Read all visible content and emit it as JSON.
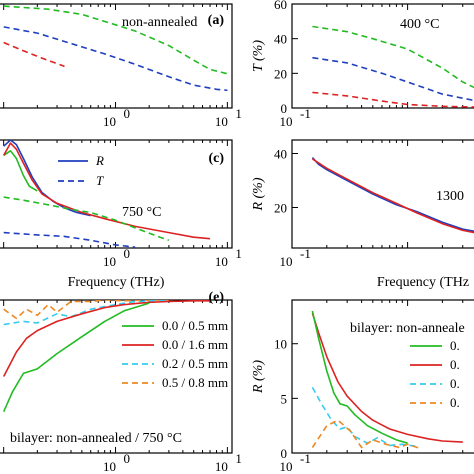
{
  "chart_data": [
    {
      "id": "a",
      "type": "line",
      "panel_label": "(a)",
      "annotation": "non-annealed",
      "xscale": "log",
      "xtick_labels": [
        "10",
        "10"
      ],
      "xtick_exponents": [
        "0",
        "1"
      ],
      "series": [
        {
          "color": "#22bb22",
          "dash": "6,4",
          "x": [
            0.1,
            0.25,
            0.5,
            1.0,
            1.5,
            3.0,
            5.0,
            7.0,
            10.0
          ],
          "y": [
            98,
            95,
            90,
            80,
            74,
            60,
            46,
            37,
            33
          ]
        },
        {
          "color": "#1f3fbf",
          "dash": "6,4",
          "x": [
            0.1,
            0.2,
            0.4,
            0.8,
            1.5,
            3.0,
            5.0,
            8.0,
            10.0
          ],
          "y": [
            78,
            72,
            62,
            52,
            42,
            30,
            22,
            18,
            17
          ]
        },
        {
          "color": "#dd2222",
          "dash": "6,4",
          "x": [
            0.1,
            0.15,
            0.22,
            0.35
          ],
          "y": [
            63,
            55,
            48,
            40
          ]
        }
      ]
    },
    {
      "id": "b",
      "type": "line",
      "annotation": "400 °C",
      "ylabel": "T (%)",
      "xscale": "log",
      "ylim": [
        0,
        60
      ],
      "yticks": [
        0,
        20,
        40,
        60
      ],
      "xtick_labels": [
        "10"
      ],
      "xtick_exponents": [
        "-1"
      ],
      "series": [
        {
          "color": "#22bb22",
          "dash": "6,4",
          "x": [
            0.15,
            0.3,
            0.5,
            1.0,
            2.0,
            3.0,
            4.0
          ],
          "y": [
            47,
            44,
            40,
            34,
            23,
            15,
            11
          ]
        },
        {
          "color": "#1f3fbf",
          "dash": "6,4",
          "x": [
            0.15,
            0.3,
            0.6,
            1.0,
            2.0,
            4.0
          ],
          "y": [
            29,
            26,
            20,
            15,
            8,
            4
          ]
        },
        {
          "color": "#dd2222",
          "dash": "6,4",
          "x": [
            0.15,
            0.3,
            0.6,
            1.0,
            2.0,
            4.0
          ],
          "y": [
            9,
            7,
            4,
            2,
            1,
            0.5
          ]
        }
      ]
    },
    {
      "id": "c",
      "type": "line",
      "panel_label": "(c)",
      "annotation": "750 °C",
      "xlabel": "Frequency (THz)",
      "xscale": "log",
      "xtick_labels": [
        "10",
        "10"
      ],
      "xtick_exponents": [
        "0",
        "1"
      ],
      "legend": [
        {
          "label": "R",
          "color": "#1f3fbf",
          "dash": ""
        },
        {
          "label": "T",
          "color": "#1f3fbf",
          "dash": "6,4"
        }
      ],
      "series": [
        {
          "color": "#1f3fbf",
          "dash": "",
          "x": [
            0.1,
            0.115,
            0.13,
            0.15,
            0.18,
            0.22,
            0.28,
            0.35,
            0.45,
            0.6
          ],
          "y": [
            66,
            70,
            67,
            58,
            46,
            36,
            30,
            26,
            23,
            21
          ]
        },
        {
          "color": "#22bb22",
          "dash": "",
          "x": [
            0.1,
            0.115,
            0.13,
            0.15,
            0.17,
            0.2
          ],
          "y": [
            60,
            63,
            58,
            47,
            40,
            37
          ]
        },
        {
          "color": "#dd2222",
          "dash": "",
          "x": [
            0.1,
            0.115,
            0.13,
            0.15,
            0.18,
            0.22,
            0.3,
            0.5,
            0.8,
            1.5,
            3.0,
            5.0,
            7.0
          ],
          "y": [
            60,
            68,
            64,
            55,
            44,
            35,
            29,
            23,
            19,
            14,
            10,
            7,
            6
          ]
        },
        {
          "color": "#22bb22",
          "dash": "6,4",
          "x": [
            0.1,
            0.15,
            0.25,
            0.4,
            0.6,
            1.0,
            1.5,
            2.5,
            3.0
          ],
          "y": [
            33,
            31,
            28,
            25,
            23,
            18,
            13,
            7,
            5
          ]
        },
        {
          "color": "#1f3fbf",
          "dash": "6,4",
          "x": [
            0.1,
            0.2,
            0.35,
            0.6,
            1.0,
            1.5
          ],
          "y": [
            10,
            8.5,
            7.5,
            5,
            2,
            0.5
          ]
        }
      ]
    },
    {
      "id": "d",
      "type": "line",
      "annotation": "1300",
      "xlabel": "Frequency (THz",
      "ylabel": "R (%)",
      "xscale": "log",
      "ylim": [
        5,
        45
      ],
      "yticks": [
        20,
        40
      ],
      "xtick_labels": [
        "10"
      ],
      "xtick_exponents": [
        "-1"
      ],
      "series": [
        {
          "color": "#1f3fbf",
          "dash": "",
          "x": [
            0.15,
            0.17,
            0.2,
            0.3,
            0.5,
            0.8,
            1.2,
            2.0,
            3.0,
            4.0
          ],
          "y": [
            38.5,
            36,
            34,
            30,
            25,
            21,
            18.5,
            14.5,
            12,
            11
          ]
        },
        {
          "color": "#dd2222",
          "dash": "",
          "x": [
            0.15,
            0.17,
            0.2,
            0.3,
            0.5,
            0.8,
            1.2,
            2.0,
            3.0,
            4.0
          ],
          "y": [
            38,
            36.5,
            34.5,
            30.5,
            25.5,
            21.5,
            18,
            14,
            11.5,
            10.5
          ]
        }
      ]
    },
    {
      "id": "e",
      "type": "line",
      "panel_label": "(e)",
      "annotation": "bilayer:  non-annealed / 750 °C",
      "xlabel": "Frequency (THz)",
      "xscale": "log",
      "xtick_labels": [
        "10",
        "10"
      ],
      "xtick_exponents": [
        "0",
        "1"
      ],
      "legend": [
        {
          "label": "0.0 / 0.5 mm",
          "color": "#22bb22",
          "dash": ""
        },
        {
          "label": "0.0 / 1.6 mm",
          "color": "#dd2222",
          "dash": ""
        },
        {
          "label": "0.2 / 0.5 mm",
          "color": "#33ccee",
          "dash": "6,4"
        },
        {
          "label": "0.5 / 0.8 mm",
          "color": "#ee8822",
          "dash": "6,4"
        }
      ],
      "series": [
        {
          "color": "#ee8822",
          "dash": "6,4",
          "x": [
            0.1,
            0.13,
            0.16,
            0.2,
            0.25,
            0.3,
            0.4,
            0.6,
            0.8,
            1.2,
            2.0,
            3.0
          ],
          "y": [
            94,
            88,
            94,
            90,
            97,
            92,
            99,
            99,
            100,
            99.5,
            100,
            100
          ]
        },
        {
          "color": "#33ccee",
          "dash": "6,4",
          "x": [
            0.1,
            0.15,
            0.2,
            0.3,
            0.4,
            0.6,
            1.0,
            1.5,
            2.0,
            3.0
          ],
          "y": [
            84,
            86,
            85,
            91,
            89,
            94,
            97,
            99,
            99.5,
            100
          ]
        },
        {
          "color": "#dd2222",
          "dash": "",
          "x": [
            0.1,
            0.13,
            0.16,
            0.2,
            0.3,
            0.5,
            0.8,
            1.2,
            2.0,
            3.0,
            5.0,
            7.0
          ],
          "y": [
            50,
            66,
            75,
            80,
            86,
            91,
            95,
            97,
            98.5,
            99,
            99.5,
            99.5
          ]
        },
        {
          "color": "#22bb22",
          "dash": "",
          "x": [
            0.1,
            0.12,
            0.15,
            0.2,
            0.3,
            0.5,
            0.8,
            1.2,
            2.0
          ],
          "y": [
            27,
            40,
            52,
            55,
            65,
            76,
            86,
            93,
            98
          ]
        }
      ]
    },
    {
      "id": "f",
      "type": "line",
      "annotation": "bilayer:  non-anneale",
      "xlabel": "Frequency (THz",
      "ylabel": "R (%)",
      "xscale": "log",
      "ylim": [
        0,
        14
      ],
      "yticks": [
        0,
        5,
        10
      ],
      "xtick_labels": [
        "10"
      ],
      "xtick_exponents": [
        "-1"
      ],
      "legend": [
        {
          "label": "0.",
          "color": "#22bb22",
          "dash": ""
        },
        {
          "label": "0.",
          "color": "#dd2222",
          "dash": ""
        },
        {
          "label": "0.",
          "color": "#33ccee",
          "dash": "6,4"
        },
        {
          "label": "0.",
          "color": "#ee8822",
          "dash": "6,4"
        }
      ],
      "series": [
        {
          "color": "#dd2222",
          "dash": "",
          "x": [
            0.15,
            0.17,
            0.2,
            0.25,
            0.3,
            0.4,
            0.5,
            0.7,
            1.0,
            1.5,
            2.0,
            3.0
          ],
          "y": [
            12.8,
            11,
            8.8,
            6.5,
            5.2,
            3.8,
            3.0,
            2.2,
            1.7,
            1.3,
            1.1,
            1.0
          ]
        },
        {
          "color": "#22bb22",
          "dash": "",
          "x": [
            0.15,
            0.17,
            0.2,
            0.23,
            0.26,
            0.3,
            0.35,
            0.45,
            0.6,
            0.8,
            1.0
          ],
          "y": [
            13,
            10.5,
            7.5,
            5.5,
            4.5,
            4.3,
            3.5,
            2.5,
            1.8,
            1.2,
            0.9
          ]
        },
        {
          "color": "#33ccee",
          "dash": "6,4",
          "x": [
            0.15,
            0.18,
            0.22,
            0.26,
            0.3,
            0.35,
            0.45,
            0.55,
            0.7,
            0.9,
            1.2
          ],
          "y": [
            6,
            4.5,
            3,
            2.2,
            2.4,
            1.5,
            0.9,
            1.4,
            0.7,
            0.8,
            0.6
          ]
        },
        {
          "color": "#ee8822",
          "dash": "6,4",
          "x": [
            0.15,
            0.2,
            0.25,
            0.32,
            0.4,
            0.5,
            0.65,
            0.85,
            1.0,
            1.3
          ],
          "y": [
            0.5,
            2.5,
            3.0,
            2.0,
            0.5,
            1.2,
            0.8,
            0.5,
            0.8,
            0.4
          ]
        }
      ]
    }
  ]
}
